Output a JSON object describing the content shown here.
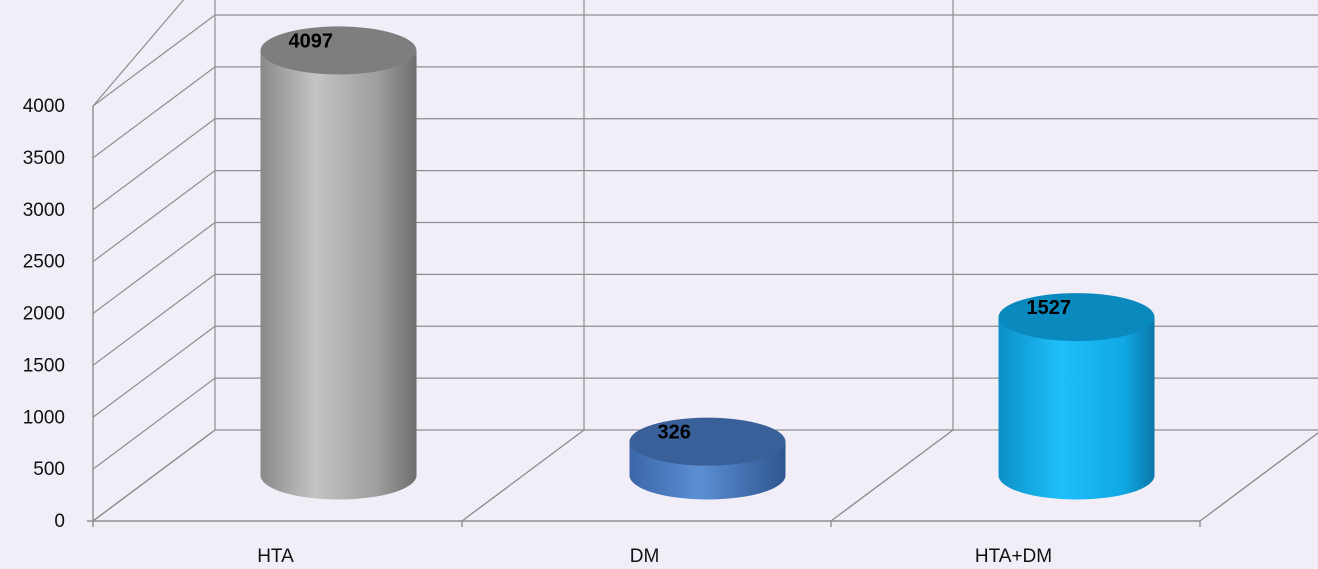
{
  "chart_data": {
    "type": "bar",
    "style": "3d-cylinder",
    "categories": [
      "HTA",
      "DM",
      "HTA+DM"
    ],
    "series": [
      {
        "values": [
          4097,
          326,
          1527
        ]
      }
    ],
    "data_labels": [
      "4097",
      "326",
      "1527"
    ],
    "ylim": [
      0,
      4000
    ],
    "yticks": [
      "0",
      "500",
      "1000",
      "1500",
      "2000",
      "2500",
      "3000",
      "3500",
      "4000"
    ],
    "grid": true,
    "legend": "none",
    "colors": {
      "background": "#f2eef8",
      "HTA": "#a6a6a6",
      "DM": "#4a7bbf",
      "HTA+DM": "#16b4ef"
    }
  }
}
